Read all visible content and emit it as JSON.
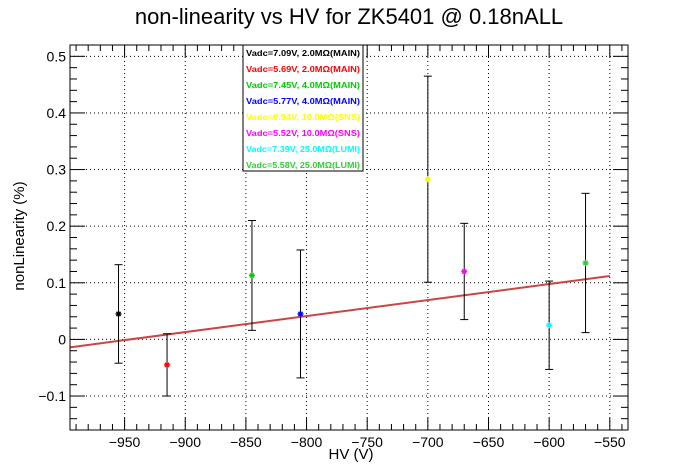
{
  "chart_data": {
    "type": "scatter",
    "title": "non-linearity vs HV for ZK5401 @ 0.18nALL",
    "xlabel": "HV (V)",
    "ylabel": "nonLinearity (%)",
    "xlim": [
      -995,
      -535
    ],
    "ylim": [
      -0.16,
      0.52
    ],
    "x_ticks": [
      -950,
      -900,
      -850,
      -800,
      -750,
      -700,
      -650,
      -600,
      -550
    ],
    "x_tick_labels": [
      "−950",
      "−900",
      "−850",
      "−800",
      "−750",
      "−700",
      "−650",
      "−600",
      "−550"
    ],
    "y_ticks": [
      -0.1,
      0,
      0.1,
      0.2,
      0.3,
      0.4,
      0.5
    ],
    "y_tick_labels": [
      "−0.1",
      "0",
      "0.1",
      "0.2",
      "0.3",
      "0.4",
      "0.5"
    ],
    "grid": true,
    "legend_placement": "top-center",
    "series": [
      {
        "name": "Vadc=7.09V, 2.0MΩ(MAIN)",
        "color": "#000000",
        "x": -955,
        "y": 0.045,
        "err": 0.087
      },
      {
        "name": "Vadc=5.69V, 2.0MΩ(MAIN)",
        "color": "#ff0000",
        "x": -915,
        "y": -0.045,
        "err": 0.055
      },
      {
        "name": "Vadc=7.45V, 4.0MΩ(MAIN)",
        "color": "#00cc00",
        "x": -845,
        "y": 0.113,
        "err": 0.097
      },
      {
        "name": "Vadc=5.77V, 4.0MΩ(MAIN)",
        "color": "#0000ff",
        "x": -805,
        "y": 0.045,
        "err": 0.113
      },
      {
        "name": "Vadc=6.94V, 10.0MΩ(SNS)",
        "color": "#ffff00",
        "x": -700,
        "y": 0.283,
        "err": 0.182
      },
      {
        "name": "Vadc=5.52V, 10.0MΩ(SNS)",
        "color": "#ff00ff",
        "x": -670,
        "y": 0.12,
        "err": 0.085
      },
      {
        "name": "Vadc=7.39V, 25.0MΩ(LUMI)",
        "color": "#00ffff",
        "x": -600,
        "y": 0.025,
        "err": 0.078
      },
      {
        "name": "Vadc=5.58V, 25.0MΩ(LUMI)",
        "color": "#33cc33",
        "x": -570,
        "y": 0.135,
        "err": 0.123
      }
    ],
    "fit_line": {
      "type": "linear",
      "color": "#cc4444",
      "x": [
        -995,
        -550
      ],
      "y": [
        -0.014,
        0.112
      ]
    }
  }
}
